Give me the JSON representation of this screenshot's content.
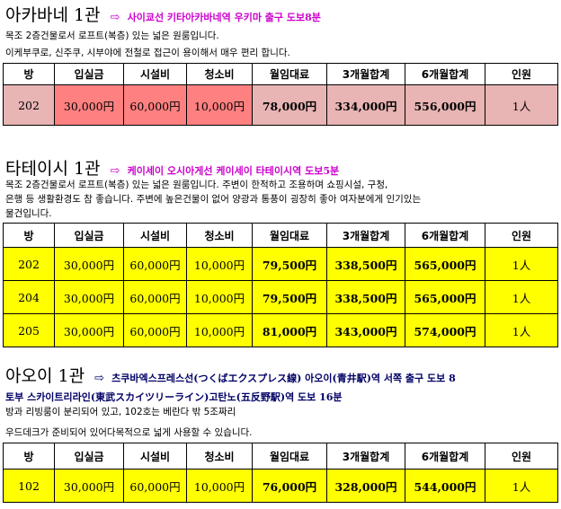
{
  "colors": {
    "title1_note": "#cc00cc",
    "title2_note": "#cc00cc",
    "title3_note": "#000066",
    "row_pink": "#e8b4b4",
    "row_salmon": "#ff8080",
    "row_yellow": "#ffff00"
  },
  "headers": [
    "방",
    "입실금",
    "시설비",
    "청소비",
    "월임대료",
    "3개월합계",
    "6개월합계",
    "인원"
  ],
  "s1": {
    "name": "아카바네 1관",
    "arrow": "⇨",
    "note": "사이쿄선 키타아카바네역 우키마 출구 도보8분",
    "desc": [
      "목조 2층건물로서 로프트(복층) 있는 넓은 원룸입니다.",
      "이케부쿠로, 신주쿠, 시부야에 전철로 접근이 용이해서 매우 편리 합니다."
    ],
    "rows": [
      {
        "room": "202",
        "deposit": "30,000円",
        "facility": "60,000円",
        "cleaning": "10,000円",
        "rent": "78,000円",
        "m3": "334,000円",
        "m6": "556,000円",
        "people": "1人"
      }
    ]
  },
  "s2": {
    "name": "타테이시 1관",
    "arrow": "⇨",
    "note": "케이세이 오시아게선 케이세이 타테이시역 도보5분",
    "desc": [
      "목조 2층건물로서 로프트(복층) 있는 넓은 원룸입니다. 주변이 한적하고 조용하며 쇼핑시설, 구청,",
      "은행 등 생활환경도 참 좋습니다. 주변에 높은건물이 없어 양광과 통풍이 굉장히 좋아 여자분에게 인기있는",
      "물건입니다."
    ],
    "rows": [
      {
        "room": "202",
        "deposit": "30,000円",
        "facility": "60,000円",
        "cleaning": "10,000円",
        "rent": "79,500円",
        "m3": "338,500円",
        "m6": "565,000円",
        "people": "1人"
      },
      {
        "room": "204",
        "deposit": "30,000円",
        "facility": "60,000円",
        "cleaning": "10,000円",
        "rent": "79,500円",
        "m3": "338,500円",
        "m6": "565,000円",
        "people": "1人"
      },
      {
        "room": "205",
        "deposit": "30,000円",
        "facility": "60,000円",
        "cleaning": "10,000円",
        "rent": "81,000円",
        "m3": "343,000円",
        "m6": "574,000円",
        "people": "1人"
      }
    ]
  },
  "s3": {
    "name": "아오이 1관",
    "arrow": "⇨",
    "note1": "츠쿠바엑스프레스선(つくばエクスプレス線) 아오이(青井駅)역 서쪽 출구 도보 8",
    "note2": "토부 스카이트리라인(東武スカイツリーライン)고탄노(五反野駅)역 도보 16분",
    "desc": [
      "방과 리빙룸이 분리되어 있고, 102호는 베란다 밖 5조짜리",
      "우드데크가 준비되어 있어다목적으로 넓게 사용할 수 있습니다."
    ],
    "rows": [
      {
        "room": "102",
        "deposit": "30,000円",
        "facility": "60,000円",
        "cleaning": "10,000円",
        "rent": "76,000円",
        "m3": "328,000円",
        "m6": "544,000円",
        "people": "1人"
      }
    ]
  }
}
